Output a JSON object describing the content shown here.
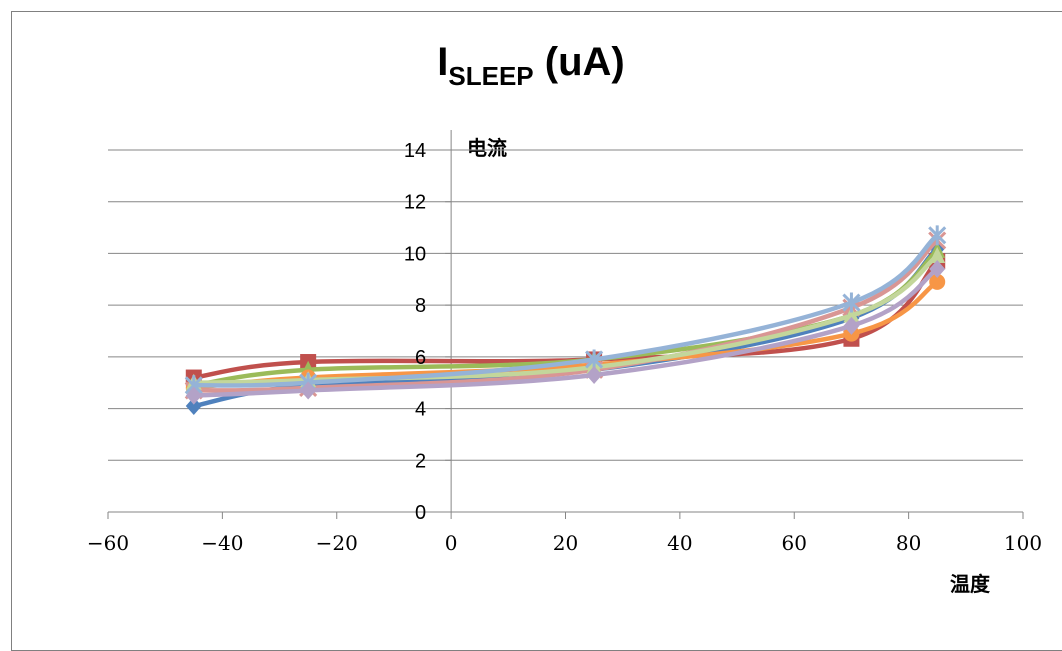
{
  "chart_data": {
    "type": "scatter",
    "title_main": "I",
    "title_sub": "SLEEP",
    "title_rest": " (uA)",
    "ylabel": "电流",
    "xlabel": "温度",
    "xlim": [
      -60,
      100
    ],
    "ylim": [
      0,
      14
    ],
    "x_ticks": [
      -60,
      -40,
      -20,
      0,
      20,
      40,
      60,
      80,
      100
    ],
    "y_ticks": [
      0,
      2,
      4,
      6,
      8,
      10,
      12,
      14
    ],
    "x_tick_labels": [
      "−60",
      "−40",
      "−20",
      "0",
      "20",
      "40",
      "60",
      "80",
      "100"
    ],
    "y_tick_labels": [
      "0",
      "2",
      "4",
      "6",
      "8",
      "10",
      "12",
      "14"
    ],
    "grid": "horizontal",
    "legend": "none",
    "x": [
      -45,
      -25,
      25,
      70,
      85
    ],
    "series": [
      {
        "color": "#4f81bd",
        "marker": "diamond",
        "values": [
          4.1,
          4.9,
          5.5,
          7.5,
          10.2
        ]
      },
      {
        "color": "#c0504d",
        "marker": "square",
        "values": [
          5.2,
          5.8,
          5.9,
          6.7,
          9.7
        ]
      },
      {
        "color": "#9bbb59",
        "marker": "triangle",
        "values": [
          4.9,
          5.5,
          5.9,
          7.6,
          10.1
        ]
      },
      {
        "color": "#f79646",
        "marker": "circle",
        "values": [
          4.8,
          5.2,
          5.7,
          6.9,
          8.9
        ]
      },
      {
        "color": "#d99694",
        "marker": "cross",
        "values": [
          4.7,
          4.8,
          5.5,
          7.9,
          10.5
        ]
      },
      {
        "color": "#c3d69b",
        "marker": "triangle",
        "values": [
          5.0,
          5.1,
          5.6,
          7.6,
          9.9
        ]
      },
      {
        "color": "#95b3d7",
        "marker": "star",
        "values": [
          4.9,
          5.0,
          5.9,
          8.1,
          10.7
        ]
      },
      {
        "color": "#b3a2c7",
        "marker": "diamond",
        "values": [
          4.5,
          4.7,
          5.3,
          7.2,
          9.4
        ]
      }
    ]
  }
}
